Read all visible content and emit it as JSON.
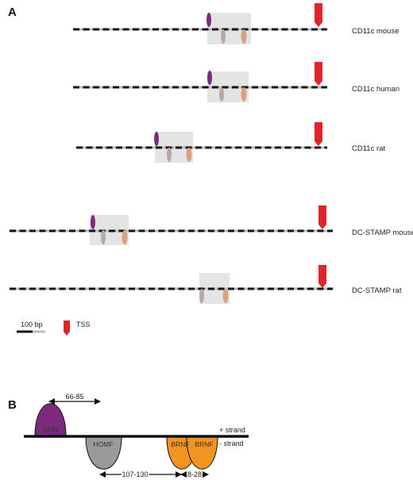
{
  "panel_a": {
    "letter": "A",
    "rows": [
      {
        "label": "CD11c mouse"
      },
      {
        "label": "CD11c human"
      },
      {
        "label": "CD11c rat"
      },
      {
        "label": "DC-STAMP mouse"
      },
      {
        "label": "DC-STAMP rat"
      }
    ],
    "legend": {
      "scale_label": "100 bp",
      "tss_label": "TSS"
    }
  },
  "panel_b": {
    "letter": "B",
    "motifs": {
      "stat": "STAT",
      "homf": "HOMF",
      "brnf_1": "BRNF",
      "brnf_2": "BRNF"
    },
    "strands": {
      "plus": "+ strand",
      "minus": "- strand"
    },
    "distances": {
      "stat_span": "66-85",
      "homf_brnf": "107-130",
      "brnf_brnf": "8-28"
    }
  },
  "colors": {
    "stat": "#7b2a7e",
    "homf": "#9a9a9d",
    "brnf": "#f2941f",
    "tss": "#e0242b",
    "module_box": "#e4e4e4",
    "line_dark": "#111111",
    "line_light": "#bdbdbd",
    "pink_motif": "#b9a7a6",
    "tan_motif": "#d7a27c"
  }
}
